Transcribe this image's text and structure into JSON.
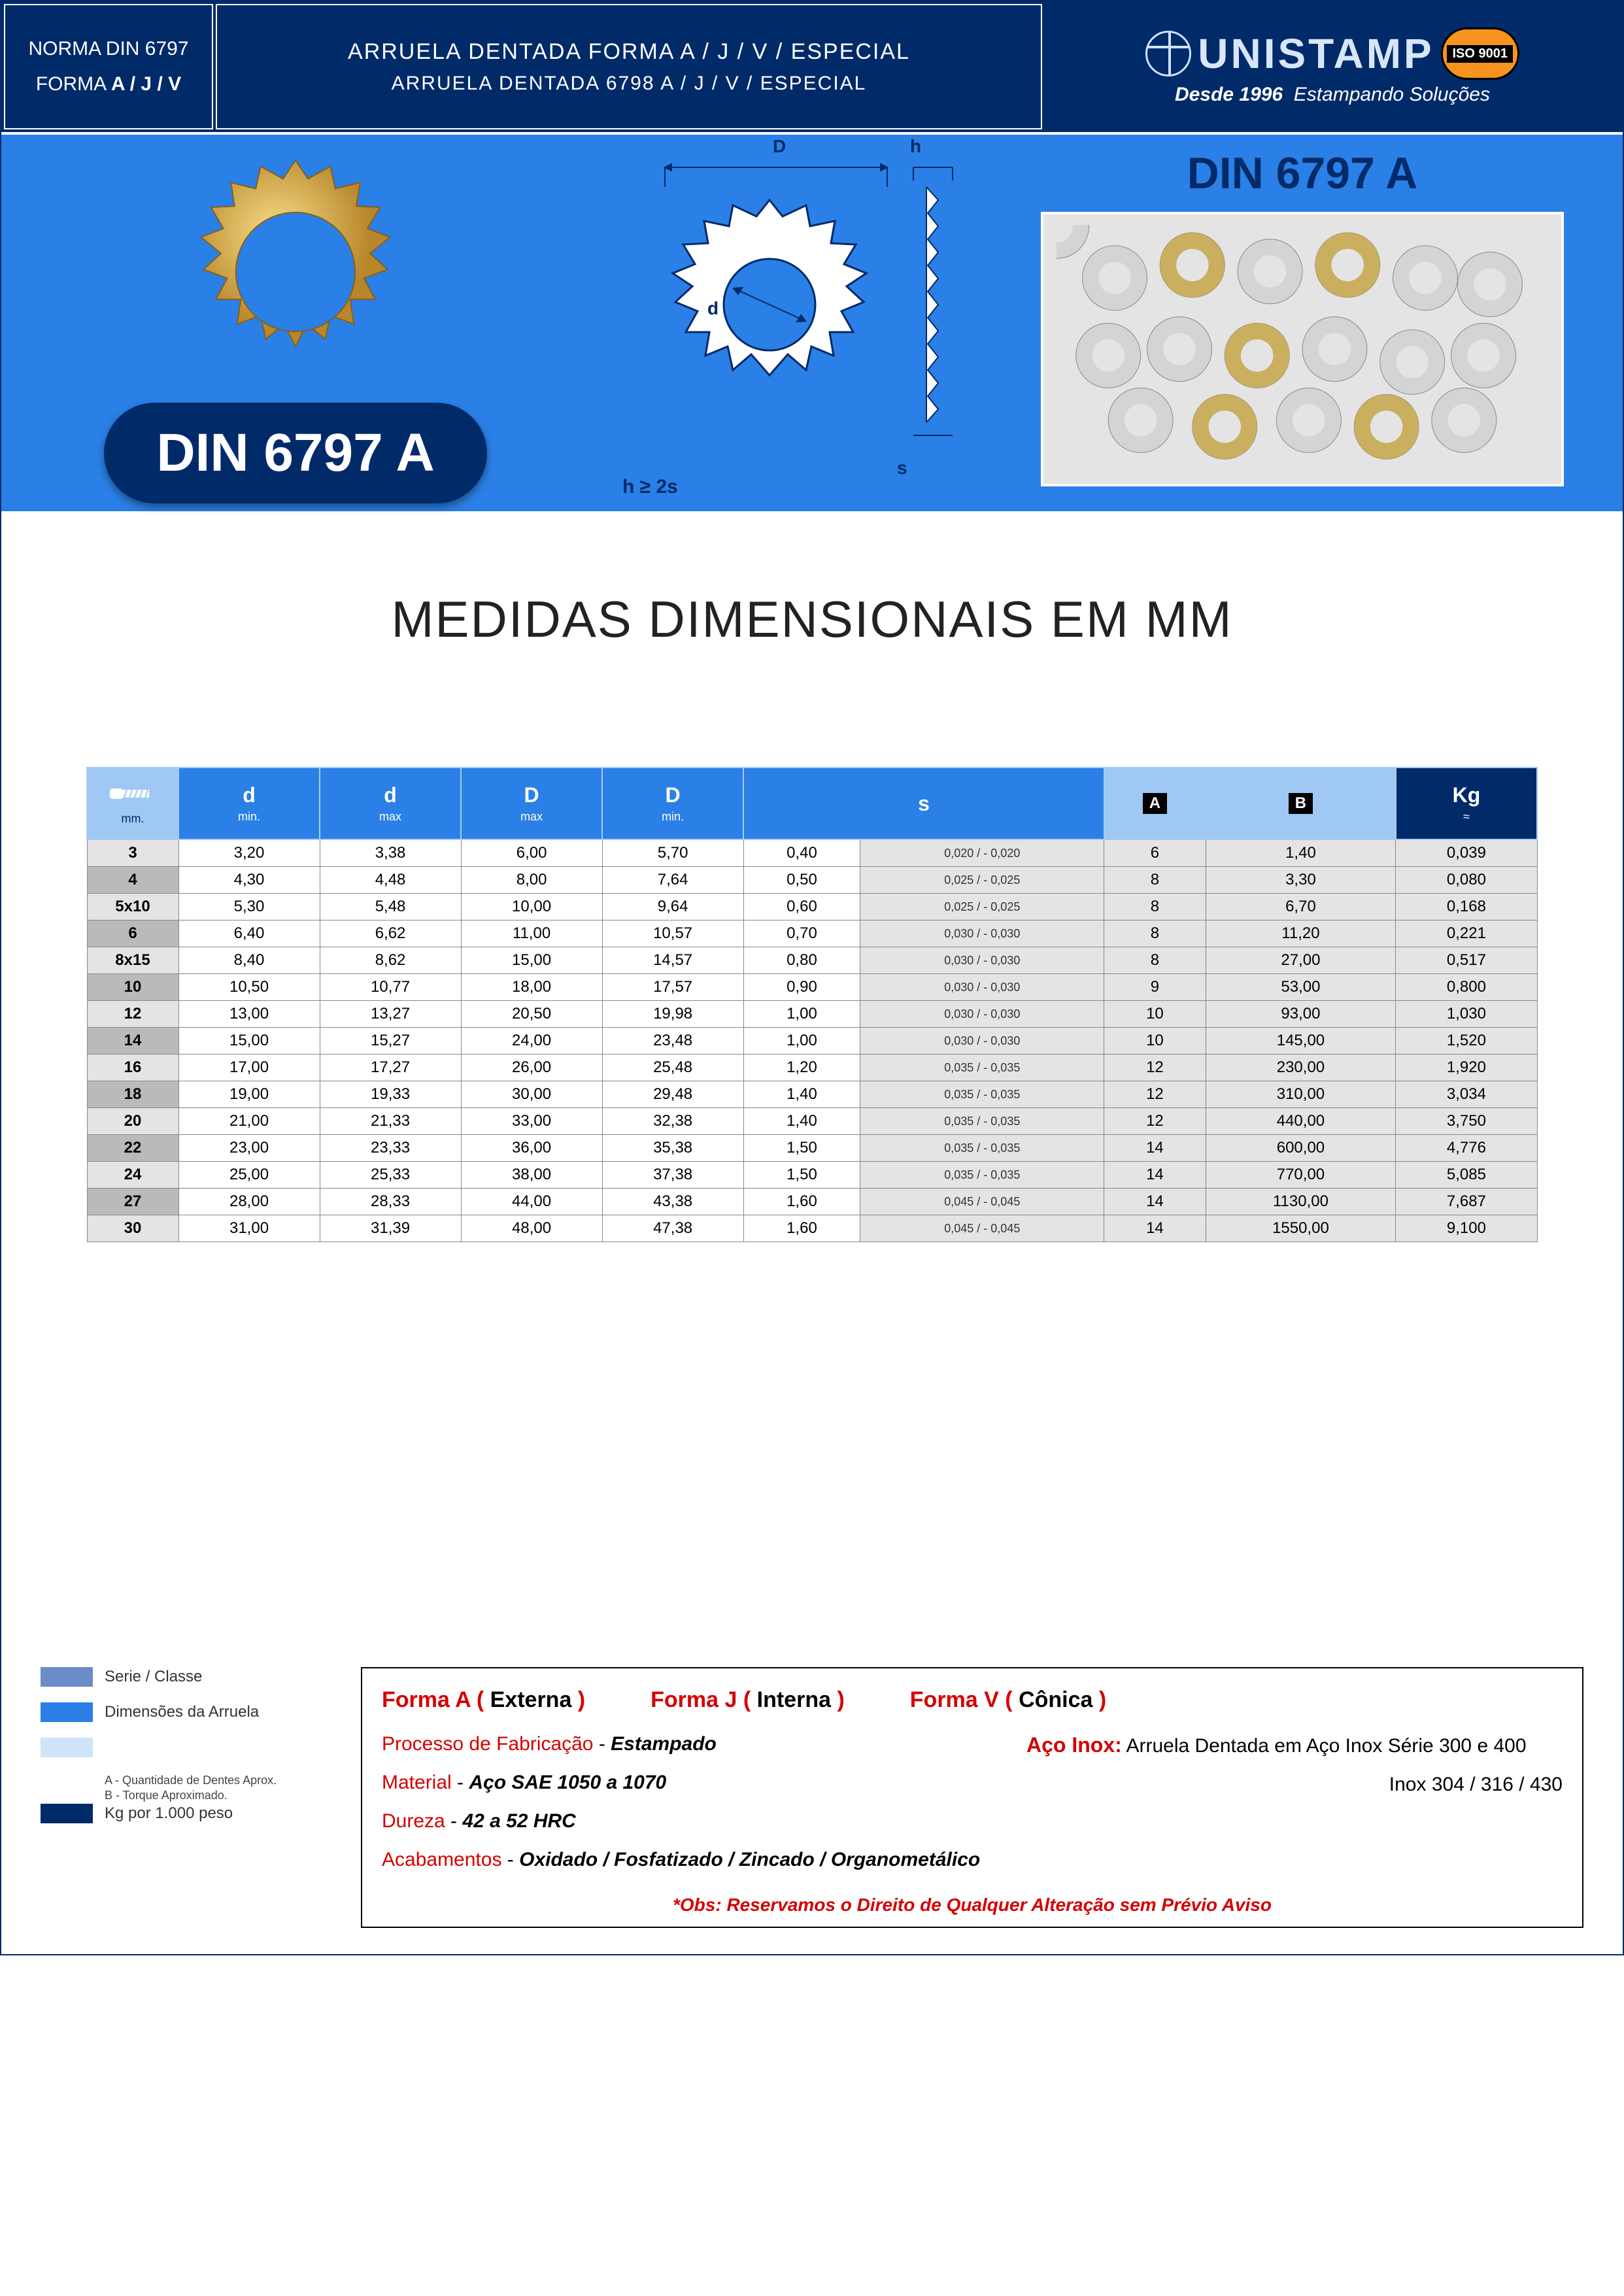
{
  "header": {
    "norma": "NORMA DIN 6797",
    "forma": "FORMA",
    "forma_bold": "A / J / V",
    "mid_line1": "ARRUELA DENTADA FORMA  A / J / V / ESPECIAL",
    "mid_line2": "ARRUELA DENTADA 6798 A / J / V / ESPECIAL",
    "brand": "UNISTAMP",
    "iso": "ISO 9001",
    "tagline_prefix": "Desde 1996",
    "tagline_rest": "Estampando Soluções"
  },
  "banner": {
    "product_label": "DIN 6797 A",
    "dim_D": "D",
    "dim_h": "h",
    "dim_s": "s",
    "dim_d": "d",
    "h_formula": "h ≥ 2s",
    "din_title": "DIN 6797 A"
  },
  "main_title": "MEDIDAS DIMENSIONAIS EM MM",
  "table": {
    "headers": {
      "mm": "mm.",
      "dmin": "d",
      "dmin_sub": "min.",
      "dmax": "d",
      "dmax_sub": "max",
      "Dmax": "D",
      "Dmax_sub": "max",
      "Dmin": "D",
      "Dmin_sub": "min.",
      "s": "s",
      "A": "A",
      "B": "B",
      "Kg": "Kg",
      "Kg_sub": "≈"
    },
    "rows": [
      {
        "mm": "3",
        "dmin": "3,20",
        "dmax": "3,38",
        "Dmax": "6,00",
        "Dmin": "5,70",
        "s": "0,40",
        "tol": "0,020   /   - 0,020",
        "A": "6",
        "B": "1,40",
        "Kg": "0,039",
        "dark": false
      },
      {
        "mm": "4",
        "dmin": "4,30",
        "dmax": "4,48",
        "Dmax": "8,00",
        "Dmin": "7,64",
        "s": "0,50",
        "tol": "0,025   /   - 0,025",
        "A": "8",
        "B": "3,30",
        "Kg": "0,080",
        "dark": true
      },
      {
        "mm": "5x10",
        "dmin": "5,30",
        "dmax": "5,48",
        "Dmax": "10,00",
        "Dmin": "9,64",
        "s": "0,60",
        "tol": "0,025   /   - 0,025",
        "A": "8",
        "B": "6,70",
        "Kg": "0,168",
        "dark": false
      },
      {
        "mm": "6",
        "dmin": "6,40",
        "dmax": "6,62",
        "Dmax": "11,00",
        "Dmin": "10,57",
        "s": "0,70",
        "tol": "0,030   /   - 0,030",
        "A": "8",
        "B": "11,20",
        "Kg": "0,221",
        "dark": true
      },
      {
        "mm": "8x15",
        "dmin": "8,40",
        "dmax": "8,62",
        "Dmax": "15,00",
        "Dmin": "14,57",
        "s": "0,80",
        "tol": "0,030   /   - 0,030",
        "A": "8",
        "B": "27,00",
        "Kg": "0,517",
        "dark": false
      },
      {
        "mm": "10",
        "dmin": "10,50",
        "dmax": "10,77",
        "Dmax": "18,00",
        "Dmin": "17,57",
        "s": "0,90",
        "tol": "0,030   /   - 0,030",
        "A": "9",
        "B": "53,00",
        "Kg": "0,800",
        "dark": true
      },
      {
        "mm": "12",
        "dmin": "13,00",
        "dmax": "13,27",
        "Dmax": "20,50",
        "Dmin": "19,98",
        "s": "1,00",
        "tol": "0,030   /   - 0,030",
        "A": "10",
        "B": "93,00",
        "Kg": "1,030",
        "dark": false
      },
      {
        "mm": "14",
        "dmin": "15,00",
        "dmax": "15,27",
        "Dmax": "24,00",
        "Dmin": "23,48",
        "s": "1,00",
        "tol": "0,030   /   - 0,030",
        "A": "10",
        "B": "145,00",
        "Kg": "1,520",
        "dark": true
      },
      {
        "mm": "16",
        "dmin": "17,00",
        "dmax": "17,27",
        "Dmax": "26,00",
        "Dmin": "25,48",
        "s": "1,20",
        "tol": "0,035   /   - 0,035",
        "A": "12",
        "B": "230,00",
        "Kg": "1,920",
        "dark": false
      },
      {
        "mm": "18",
        "dmin": "19,00",
        "dmax": "19,33",
        "Dmax": "30,00",
        "Dmin": "29,48",
        "s": "1,40",
        "tol": "0,035   /   - 0,035",
        "A": "12",
        "B": "310,00",
        "Kg": "3,034",
        "dark": true
      },
      {
        "mm": "20",
        "dmin": "21,00",
        "dmax": "21,33",
        "Dmax": "33,00",
        "Dmin": "32,38",
        "s": "1,40",
        "tol": "0,035   /   - 0,035",
        "A": "12",
        "B": "440,00",
        "Kg": "3,750",
        "dark": false
      },
      {
        "mm": "22",
        "dmin": "23,00",
        "dmax": "23,33",
        "Dmax": "36,00",
        "Dmin": "35,38",
        "s": "1,50",
        "tol": "0,035   /   - 0,035",
        "A": "14",
        "B": "600,00",
        "Kg": "4,776",
        "dark": true
      },
      {
        "mm": "24",
        "dmin": "25,00",
        "dmax": "25,33",
        "Dmax": "38,00",
        "Dmin": "37,38",
        "s": "1,50",
        "tol": "0,035   /   - 0,035",
        "A": "14",
        "B": "770,00",
        "Kg": "5,085",
        "dark": false
      },
      {
        "mm": "27",
        "dmin": "28,00",
        "dmax": "28,33",
        "Dmax": "44,00",
        "Dmin": "43,38",
        "s": "1,60",
        "tol": "0,045   /   - 0,045",
        "A": "14",
        "B": "1130,00",
        "Kg": "7,687",
        "dark": true
      },
      {
        "mm": "30",
        "dmin": "31,00",
        "dmax": "31,39",
        "Dmax": "48,00",
        "Dmin": "47,38",
        "s": "1,60",
        "tol": "0,045   /   - 0,045",
        "A": "14",
        "B": "1550,00",
        "Kg": "9,100",
        "dark": false
      }
    ]
  },
  "legend": {
    "items": [
      {
        "color": "#6a8cc8",
        "label": "Serie / Classe"
      },
      {
        "color": "#2a80e6",
        "label": "Dimensões da Arruela"
      },
      {
        "color": "#cfe3f9",
        "label": "",
        "note": "A - Quantidade de Dentes Aprox.\nB - Torque Aproximado."
      },
      {
        "color": "#012a69",
        "label": "Kg por 1.000 peso"
      }
    ]
  },
  "info": {
    "forma_a": "Forma A",
    "forma_a_paren": "( Externa )",
    "forma_j": "Forma J",
    "forma_j_paren": "( Interna )",
    "forma_v": "Forma V",
    "forma_v_paren": "( Cônica )",
    "processo_label": "Processo de Fabricação",
    "processo_val": "Estampado",
    "material_label": "Material",
    "material_val": "Aço SAE 1050 a 1070",
    "dureza_label": "Dureza",
    "dureza_val": "42 a 52 HRC",
    "acab_label": "Acabamentos",
    "acab_val": "Oxidado / Fosfatizado / Zincado / Organometálico",
    "aco_inox_label": "Aço Inox:",
    "aco_inox_text": "Arruela Dentada em Aço Inox Série 300 e 400",
    "inox_line": "Inox 304 / 316 / 430",
    "obs": "*Obs: Reservamos o Direito de Qualquer Alteração sem Prévio Aviso"
  },
  "colors": {
    "navy": "#012a69",
    "blue": "#2a80e6",
    "light_blue": "#9fc8f4",
    "gold": "#d4a936",
    "red": "#d40000"
  }
}
